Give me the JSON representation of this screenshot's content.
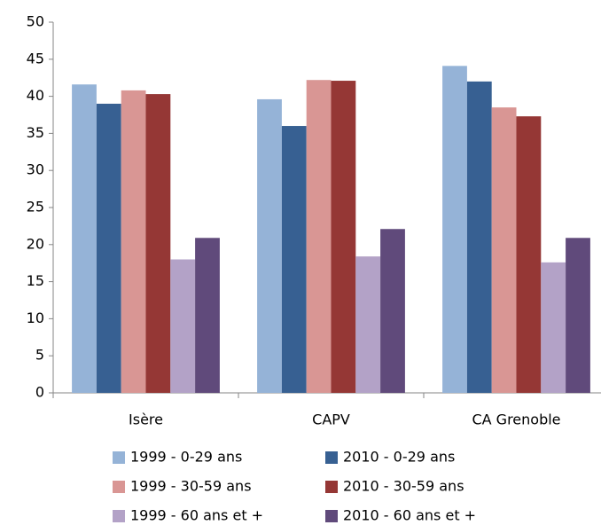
{
  "chart_data": {
    "type": "bar",
    "categories": [
      "Isère",
      "CAPV",
      "CA Grenoble"
    ],
    "series": [
      {
        "name": "1999 - 0-29 ans",
        "color": "#95b3d7",
        "values": [
          41.6,
          39.6,
          44.1
        ]
      },
      {
        "name": "2010 - 0-29 ans",
        "color": "#376092",
        "values": [
          39.0,
          36.0,
          42.0
        ]
      },
      {
        "name": "1999 - 30-59 ans",
        "color": "#d99694",
        "values": [
          40.8,
          42.2,
          38.5
        ]
      },
      {
        "name": "2010 - 30-59 ans",
        "color": "#953735",
        "values": [
          40.3,
          42.1,
          37.3
        ]
      },
      {
        "name": "1999 - 60 ans et +",
        "color": "#b3a2c7",
        "values": [
          18.0,
          18.4,
          17.6
        ]
      },
      {
        "name": "2010 - 60 ans et +",
        "color": "#604a7b",
        "values": [
          20.9,
          22.1,
          20.9
        ]
      }
    ],
    "ylim": [
      0,
      50
    ],
    "yticks": [
      0,
      5,
      10,
      15,
      20,
      25,
      30,
      35,
      40,
      45,
      50
    ],
    "grid": false,
    "legend": "bottom"
  }
}
